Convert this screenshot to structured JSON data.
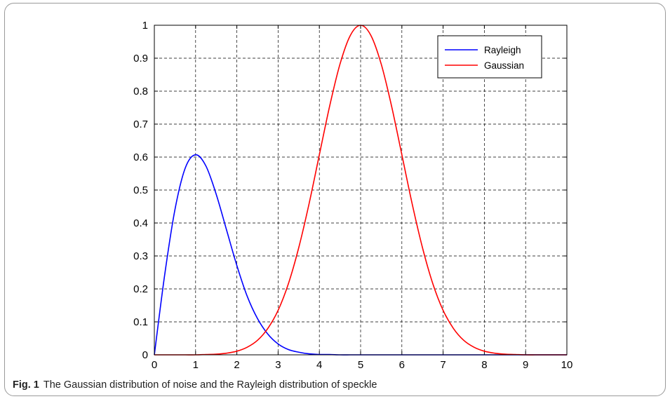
{
  "chart_data": {
    "type": "line",
    "title": "",
    "xlabel": "",
    "ylabel": "",
    "xlim": [
      0,
      10
    ],
    "ylim": [
      0,
      1
    ],
    "xticks": [
      "0",
      "1",
      "2",
      "3",
      "4",
      "5",
      "6",
      "7",
      "8",
      "9",
      "10"
    ],
    "yticks": [
      "0",
      "0.1",
      "0.2",
      "0.3",
      "0.4",
      "0.5",
      "0.6",
      "0.7",
      "0.8",
      "0.9",
      "1"
    ],
    "grid": true,
    "legend_position": "top-right",
    "x": [
      0,
      0.25,
      0.5,
      0.75,
      1,
      1.25,
      1.5,
      1.75,
      2,
      2.25,
      2.5,
      2.75,
      3,
      3.25,
      3.5,
      3.75,
      4,
      4.25,
      4.5,
      4.75,
      5,
      5.25,
      5.5,
      5.75,
      6,
      6.25,
      6.5,
      6.75,
      7,
      7.25,
      7.5,
      7.75,
      8,
      8.25,
      8.5,
      8.75,
      9,
      9.25,
      9.5,
      9.75,
      10
    ],
    "series": [
      {
        "name": "Rayleigh",
        "color": "#0000ff",
        "values": [
          0,
          0.242,
          0.441,
          0.567,
          0.607,
          0.573,
          0.487,
          0.379,
          0.271,
          0.178,
          0.11,
          0.063,
          0.033,
          0.016,
          0.008,
          0.003,
          0.001,
          0.001,
          0,
          0,
          0,
          0,
          0,
          0,
          0,
          0,
          0,
          0,
          0,
          0,
          0,
          0,
          0,
          0,
          0,
          0,
          0,
          0,
          0,
          0,
          0
        ]
      },
      {
        "name": "Gaussian",
        "color": "#ff0000",
        "values": [
          0,
          0,
          0,
          0,
          0,
          0.001,
          0.002,
          0.005,
          0.011,
          0.023,
          0.044,
          0.08,
          0.135,
          0.216,
          0.325,
          0.458,
          0.607,
          0.755,
          0.882,
          0.969,
          1,
          0.969,
          0.882,
          0.755,
          0.607,
          0.458,
          0.325,
          0.216,
          0.135,
          0.08,
          0.044,
          0.023,
          0.011,
          0.005,
          0.002,
          0.001,
          0,
          0,
          0,
          0,
          0
        ]
      }
    ]
  },
  "caption": {
    "label": "Fig. 1",
    "text": "The Gaussian distribution of noise and the Rayleigh distribution of speckle"
  }
}
